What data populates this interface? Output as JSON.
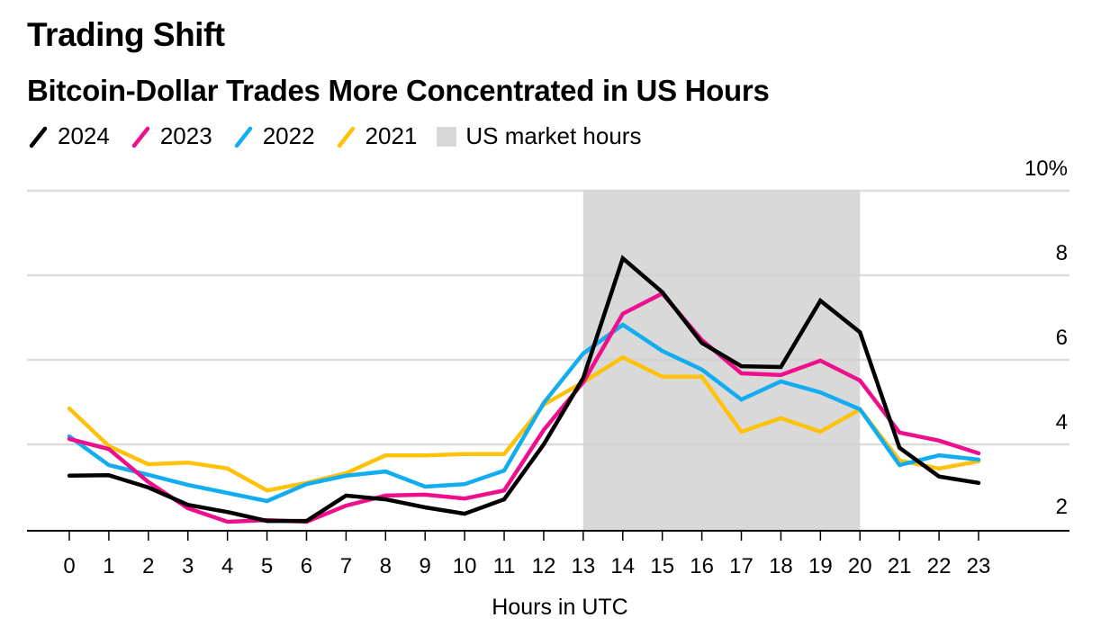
{
  "header": {
    "title": "Trading Shift",
    "subtitle": "Bitcoin-Dollar Trades More Concentrated in US Hours"
  },
  "legend": [
    {
      "label": "2024",
      "color": "#000000",
      "kind": "line"
    },
    {
      "label": "2023",
      "color": "#ee0f8c",
      "kind": "line"
    },
    {
      "label": "2022",
      "color": "#12adf0",
      "kind": "line"
    },
    {
      "label": "2021",
      "color": "#fec20b",
      "kind": "line"
    },
    {
      "label": "US market hours",
      "color": "#d9d9d9",
      "kind": "box"
    }
  ],
  "chart_data": {
    "type": "line",
    "title": "Trading Shift",
    "subtitle": "Bitcoin-Dollar Trades More Concentrated in US Hours",
    "xlabel": "Hours in UTC",
    "ylabel": "",
    "x": [
      0,
      1,
      2,
      3,
      4,
      5,
      6,
      7,
      8,
      9,
      10,
      11,
      12,
      13,
      14,
      15,
      16,
      17,
      18,
      19,
      20,
      21,
      22,
      23
    ],
    "xtick_labels": [
      "0",
      "1",
      "2",
      "3",
      "4",
      "5",
      "6",
      "7",
      "8",
      "9",
      "10",
      "11",
      "12",
      "13",
      "14",
      "15",
      "16",
      "17",
      "18",
      "19",
      "20",
      "21",
      "22",
      "23"
    ],
    "ylim": [
      2,
      10
    ],
    "yticks": [
      2,
      4,
      6,
      8,
      10
    ],
    "ytick_labels": [
      "2",
      "4",
      "6",
      "8",
      "10%"
    ],
    "y_axis_side": "right",
    "grid": true,
    "legend_position": "top-left",
    "shaded_region": {
      "label": "US market hours",
      "x_start": 13,
      "x_end": 20,
      "color": "#d9d9d9"
    },
    "series": [
      {
        "name": "2024",
        "color": "#000000",
        "values": [
          3.26,
          3.27,
          2.98,
          2.57,
          2.4,
          2.19,
          2.19,
          2.79,
          2.7,
          2.51,
          2.36,
          2.7,
          4.0,
          5.57,
          8.4,
          7.6,
          6.4,
          5.85,
          5.83,
          7.4,
          6.65,
          3.92,
          3.24,
          3.09
        ]
      },
      {
        "name": "2023",
        "color": "#ee0f8c",
        "values": [
          4.13,
          3.89,
          3.11,
          2.49,
          2.17,
          2.21,
          2.17,
          2.55,
          2.79,
          2.81,
          2.72,
          2.91,
          4.34,
          5.47,
          7.09,
          7.57,
          6.47,
          5.68,
          5.64,
          5.98,
          5.51,
          4.28,
          4.09,
          3.79
        ]
      },
      {
        "name": "2022",
        "color": "#12adf0",
        "values": [
          4.19,
          3.51,
          3.28,
          3.04,
          2.85,
          2.66,
          3.06,
          3.26,
          3.36,
          3.0,
          3.06,
          3.38,
          4.98,
          6.15,
          6.83,
          6.21,
          5.77,
          5.06,
          5.49,
          5.23,
          4.83,
          3.51,
          3.74,
          3.64
        ]
      },
      {
        "name": "2021",
        "color": "#fec20b",
        "values": [
          4.85,
          3.96,
          3.53,
          3.57,
          3.43,
          2.91,
          3.09,
          3.32,
          3.74,
          3.74,
          3.77,
          3.77,
          4.94,
          5.47,
          6.06,
          5.6,
          5.6,
          4.3,
          4.62,
          4.3,
          4.83,
          3.62,
          3.43,
          3.6
        ]
      }
    ]
  }
}
